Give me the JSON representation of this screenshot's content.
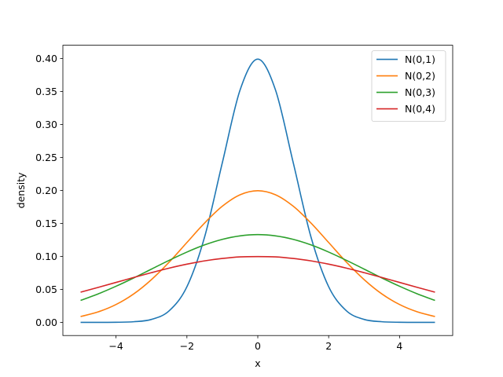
{
  "chart_data": {
    "type": "line",
    "title": "",
    "xlabel": "x",
    "ylabel": "density",
    "xlim": [
      -5.5,
      5.5
    ],
    "ylim": [
      -0.02,
      0.42
    ],
    "grid": false,
    "legend_position": "top-right",
    "x_ticks": [
      {
        "value": -4,
        "label": "−4"
      },
      {
        "value": -2,
        "label": "−2"
      },
      {
        "value": 0,
        "label": "0"
      },
      {
        "value": 2,
        "label": "2"
      },
      {
        "value": 4,
        "label": "4"
      }
    ],
    "y_ticks": [
      {
        "value": 0.0,
        "label": "0.00"
      },
      {
        "value": 0.05,
        "label": "0.05"
      },
      {
        "value": 0.1,
        "label": "0.10"
      },
      {
        "value": 0.15,
        "label": "0.15"
      },
      {
        "value": 0.2,
        "label": "0.20"
      },
      {
        "value": 0.25,
        "label": "0.25"
      },
      {
        "value": 0.3,
        "label": "0.30"
      },
      {
        "value": 0.35,
        "label": "0.35"
      },
      {
        "value": 0.4,
        "label": "0.40"
      }
    ],
    "x": [
      -5,
      -4.5,
      -4,
      -3.5,
      -3,
      -2.5,
      -2,
      -1.5,
      -1,
      -0.5,
      0,
      0.5,
      1,
      1.5,
      2,
      2.5,
      3,
      3.5,
      4,
      4.5,
      5
    ],
    "series": [
      {
        "name": "N(0,1)",
        "color": "#1f77b4",
        "values": [
          0.0,
          0.0,
          0.0001,
          0.0009,
          0.0044,
          0.0175,
          0.054,
          0.1295,
          0.242,
          0.3521,
          0.3989,
          0.3521,
          0.242,
          0.1295,
          0.054,
          0.0175,
          0.0044,
          0.0009,
          0.0001,
          0.0,
          0.0
        ]
      },
      {
        "name": "N(0,2)",
        "color": "#ff7f0e",
        "values": [
          0.0088,
          0.0159,
          0.027,
          0.0431,
          0.0648,
          0.0913,
          0.121,
          0.1506,
          0.176,
          0.1933,
          0.1995,
          0.1933,
          0.176,
          0.1506,
          0.121,
          0.0913,
          0.0648,
          0.0431,
          0.027,
          0.0159,
          0.0088
        ]
      },
      {
        "name": "N(0,3)",
        "color": "#2ca02c",
        "values": [
          0.0332,
          0.0432,
          0.0547,
          0.0673,
          0.0807,
          0.094,
          0.1065,
          0.1174,
          0.1258,
          0.1311,
          0.133,
          0.1311,
          0.1258,
          0.1174,
          0.1065,
          0.094,
          0.0807,
          0.0673,
          0.0547,
          0.0432,
          0.0332
        ]
      },
      {
        "name": "N(0,4)",
        "color": "#d62728",
        "values": [
          0.0457,
          0.053,
          0.0605,
          0.068,
          0.0753,
          0.0822,
          0.0882,
          0.0932,
          0.0968,
          0.0992,
          0.0997,
          0.0992,
          0.0968,
          0.0932,
          0.0882,
          0.0822,
          0.0753,
          0.068,
          0.0605,
          0.053,
          0.0457
        ]
      }
    ]
  }
}
